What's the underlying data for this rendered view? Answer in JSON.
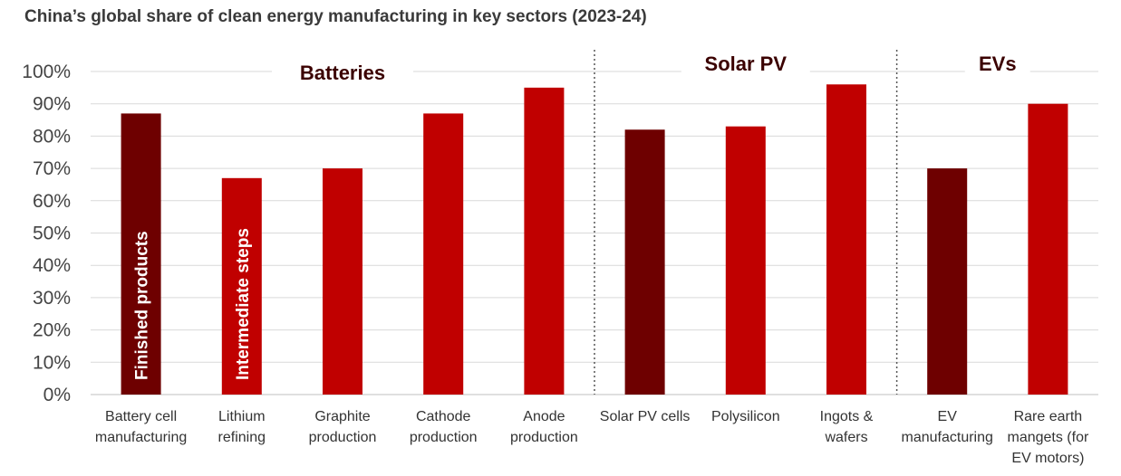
{
  "title": "China’s global share of clean energy manufacturing in key sectors (2023-24)",
  "colors": {
    "finished": "#6e0000",
    "intermediate": "#c00000",
    "grid": "#d9d9d9",
    "axis": "#bfbfbf",
    "divider": "#555555"
  },
  "chart_data": {
    "type": "bar",
    "ylim": [
      0,
      100
    ],
    "y_ticks": [
      "0%",
      "10%",
      "20%",
      "30%",
      "40%",
      "50%",
      "60%",
      "70%",
      "80%",
      "90%",
      "100%"
    ],
    "grid": true,
    "categories": [
      [
        "Battery cell",
        "manufacturing"
      ],
      [
        "Lithium",
        "refining"
      ],
      [
        "Graphite",
        "production"
      ],
      [
        "Cathode",
        "production"
      ],
      [
        "Anode",
        "production"
      ],
      [
        "Solar PV cells"
      ],
      [
        "Polysilicon"
      ],
      [
        "Ingots &",
        "wafers"
      ],
      [
        "EV",
        "manufacturing"
      ],
      [
        "Rare earth",
        "mangets (for",
        "EV motors)"
      ]
    ],
    "values": [
      87,
      67,
      70,
      87,
      95,
      82,
      83,
      96,
      70,
      90
    ],
    "bar_types": [
      "finished",
      "intermediate",
      "intermediate",
      "intermediate",
      "intermediate",
      "finished",
      "intermediate",
      "intermediate",
      "finished",
      "intermediate"
    ],
    "groups": [
      {
        "name": "Batteries",
        "start": 0,
        "end": 4
      },
      {
        "name": "Solar PV",
        "start": 5,
        "end": 7
      },
      {
        "name": "EVs",
        "start": 8,
        "end": 9
      }
    ],
    "bar_labels": [
      {
        "index": 0,
        "text": "Finished products"
      },
      {
        "index": 1,
        "text": "Intermediate steps"
      }
    ]
  }
}
